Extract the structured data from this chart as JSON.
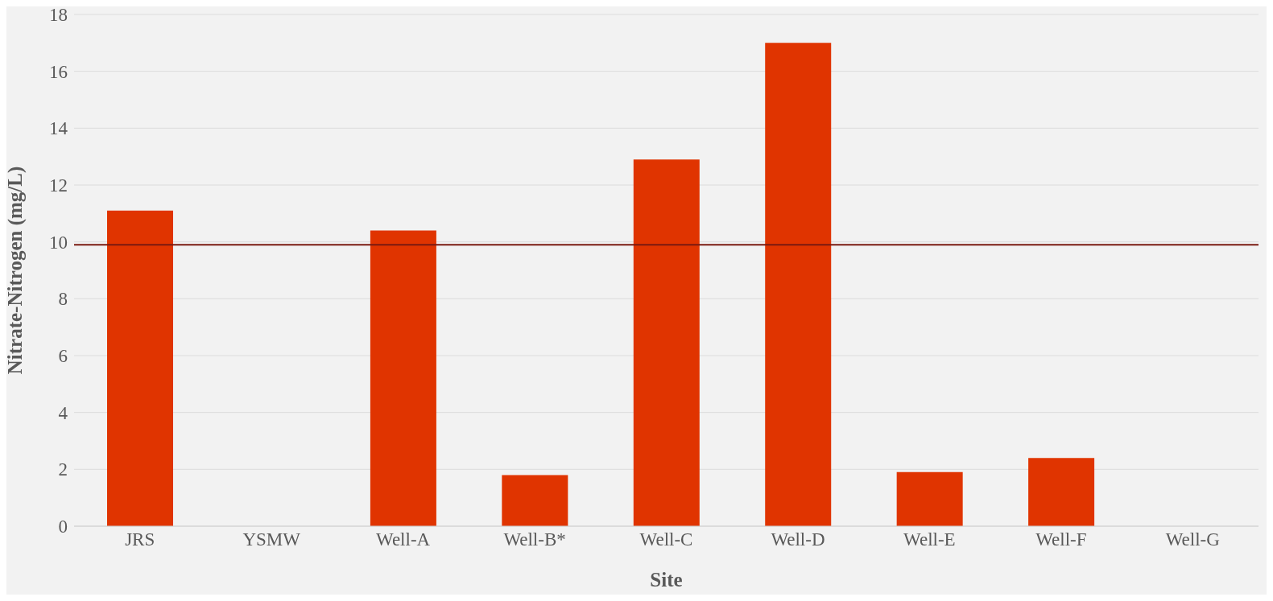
{
  "chart_data": {
    "type": "bar",
    "xlabel": "Site",
    "ylabel": "Nitrate-Nitrogen (mg/L)",
    "categories": [
      "JRS",
      "YSMW",
      "Well-A",
      "Well-B*",
      "Well-C",
      "Well-D",
      "Well-E",
      "Well-F",
      "Well-G"
    ],
    "values": [
      11.1,
      null,
      10.4,
      1.8,
      12.9,
      17.0,
      1.9,
      2.4,
      null
    ],
    "color": "#e03400",
    "ylim": [
      0,
      18
    ],
    "yticks": [
      0,
      2,
      4,
      6,
      8,
      10,
      12,
      14,
      16,
      18
    ],
    "grid": "y",
    "ref_lines": [
      {
        "axis": "y",
        "value": 9.9,
        "color": "#7a1a10"
      }
    ]
  }
}
